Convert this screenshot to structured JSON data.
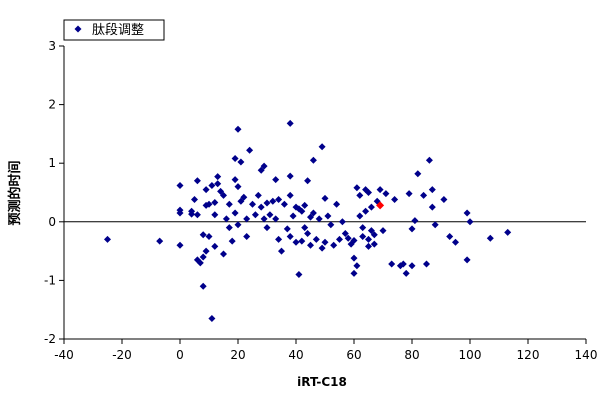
{
  "chart_data": {
    "type": "scatter",
    "title": "",
    "xlabel": "iRT-C18",
    "ylabel": "预测的时间",
    "xlim": [
      -40,
      140
    ],
    "ylim": [
      -2,
      3
    ],
    "xticks": [
      -40,
      -20,
      0,
      20,
      40,
      60,
      80,
      100,
      120,
      140
    ],
    "yticks": [
      -2,
      -1,
      0,
      1,
      2,
      3
    ],
    "grid": false,
    "zero_line": true,
    "legend_position": "top-left",
    "colors": {
      "series": "#00008b",
      "highlight": "#ff0000"
    },
    "series": [
      {
        "name": "肽段调整",
        "marker": "diamond",
        "points": [
          [
            -25,
            -0.3
          ],
          [
            -7,
            -0.33
          ],
          [
            0,
            0.62
          ],
          [
            0,
            0.2
          ],
          [
            0,
            0.15
          ],
          [
            0,
            -0.4
          ],
          [
            4,
            0.18
          ],
          [
            4,
            0.13
          ],
          [
            5,
            0.38
          ],
          [
            6,
            0.7
          ],
          [
            6,
            0.12
          ],
          [
            6,
            -0.65
          ],
          [
            7,
            -0.7
          ],
          [
            8,
            -0.6
          ],
          [
            8,
            -0.22
          ],
          [
            8,
            -1.1
          ],
          [
            9,
            0.55
          ],
          [
            9,
            0.28
          ],
          [
            9,
            -0.5
          ],
          [
            10,
            0.3
          ],
          [
            10,
            -0.25
          ],
          [
            11,
            -1.65
          ],
          [
            11,
            0.62
          ],
          [
            12,
            -0.42
          ],
          [
            12,
            0.33
          ],
          [
            12,
            0.12
          ],
          [
            13,
            0.77
          ],
          [
            13,
            0.65
          ],
          [
            14,
            0.52
          ],
          [
            15,
            -0.55
          ],
          [
            15,
            0.45
          ],
          [
            16,
            0.05
          ],
          [
            17,
            0.3
          ],
          [
            17,
            -0.1
          ],
          [
            18,
            -0.33
          ],
          [
            19,
            1.08
          ],
          [
            19,
            0.72
          ],
          [
            19,
            0.15
          ],
          [
            20,
            1.58
          ],
          [
            20,
            0.6
          ],
          [
            20,
            -0.05
          ],
          [
            21,
            1.02
          ],
          [
            21,
            0.35
          ],
          [
            22,
            0.42
          ],
          [
            23,
            0.05
          ],
          [
            23,
            -0.25
          ],
          [
            24,
            1.22
          ],
          [
            25,
            0.3
          ],
          [
            26,
            0.12
          ],
          [
            27,
            0.45
          ],
          [
            28,
            0.88
          ],
          [
            28,
            0.25
          ],
          [
            29,
            0.95
          ],
          [
            29,
            0.05
          ],
          [
            30,
            0.32
          ],
          [
            30,
            -0.1
          ],
          [
            31,
            0.12
          ],
          [
            32,
            0.35
          ],
          [
            33,
            0.72
          ],
          [
            33,
            0.05
          ],
          [
            34,
            0.38
          ],
          [
            34,
            -0.3
          ],
          [
            35,
            -0.5
          ],
          [
            36,
            0.3
          ],
          [
            37,
            -0.12
          ],
          [
            38,
            1.68
          ],
          [
            38,
            0.78
          ],
          [
            38,
            0.45
          ],
          [
            38,
            -0.25
          ],
          [
            39,
            0.1
          ],
          [
            40,
            0.25
          ],
          [
            40,
            -0.35
          ],
          [
            41,
            0.22
          ],
          [
            41,
            -0.9
          ],
          [
            42,
            0.18
          ],
          [
            42,
            -0.33
          ],
          [
            43,
            0.28
          ],
          [
            43,
            -0.1
          ],
          [
            44,
            0.7
          ],
          [
            44,
            -0.2
          ],
          [
            45,
            0.08
          ],
          [
            45,
            -0.4
          ],
          [
            46,
            1.05
          ],
          [
            46,
            0.15
          ],
          [
            47,
            -0.3
          ],
          [
            48,
            0.05
          ],
          [
            49,
            1.28
          ],
          [
            49,
            -0.45
          ],
          [
            50,
            0.4
          ],
          [
            50,
            -0.35
          ],
          [
            51,
            0.1
          ],
          [
            52,
            -0.05
          ],
          [
            53,
            -0.4
          ],
          [
            54,
            0.3
          ],
          [
            55,
            -0.3
          ],
          [
            56,
            0.0
          ],
          [
            57,
            -0.2
          ],
          [
            58,
            -0.28
          ],
          [
            59,
            -0.38
          ],
          [
            60,
            -0.32
          ],
          [
            60,
            -0.62
          ],
          [
            60,
            -0.88
          ],
          [
            61,
            -0.75
          ],
          [
            61,
            0.58
          ],
          [
            62,
            0.45
          ],
          [
            62,
            0.1
          ],
          [
            63,
            -0.1
          ],
          [
            63,
            -0.25
          ],
          [
            64,
            0.18
          ],
          [
            64,
            0.55
          ],
          [
            65,
            0.5
          ],
          [
            65,
            -0.3
          ],
          [
            65,
            -0.42
          ],
          [
            66,
            0.25
          ],
          [
            66,
            -0.15
          ],
          [
            67,
            -0.38
          ],
          [
            67,
            -0.22
          ],
          [
            68,
            0.35
          ],
          [
            69,
            0.55
          ],
          [
            70,
            -0.15
          ],
          [
            71,
            0.48
          ],
          [
            73,
            -0.72
          ],
          [
            74,
            0.38
          ],
          [
            76,
            -0.75
          ],
          [
            77,
            -0.72
          ],
          [
            78,
            -0.88
          ],
          [
            79,
            0.48
          ],
          [
            80,
            -0.75
          ],
          [
            80,
            -0.12
          ],
          [
            81,
            0.02
          ],
          [
            82,
            0.82
          ],
          [
            84,
            0.45
          ],
          [
            85,
            -0.72
          ],
          [
            86,
            1.05
          ],
          [
            87,
            0.25
          ],
          [
            87,
            0.55
          ],
          [
            88,
            -0.05
          ],
          [
            91,
            0.38
          ],
          [
            93,
            -0.25
          ],
          [
            95,
            -0.35
          ],
          [
            99,
            0.15
          ],
          [
            99,
            -0.65
          ],
          [
            100,
            0.0
          ],
          [
            107,
            -0.28
          ],
          [
            113,
            -0.18
          ]
        ]
      }
    ],
    "highlight_points": [
      [
        69,
        0.28
      ]
    ]
  }
}
